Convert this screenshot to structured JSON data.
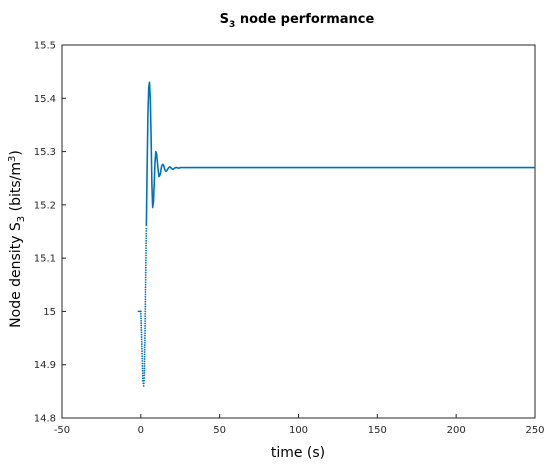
{
  "chart_data": {
    "type": "line",
    "title": {
      "main": "S",
      "sub": "3",
      "rest": " node performance"
    },
    "xlabel": "time (s)",
    "ylabel": {
      "pre": "Node density S",
      "sub": "3",
      "mid": " (bits/m",
      "sup": "3",
      "post": ")"
    },
    "xlim": [
      -50,
      250
    ],
    "ylim": [
      14.8,
      15.5
    ],
    "xticks": [
      -50,
      0,
      50,
      100,
      150,
      200,
      250
    ],
    "xtick_labels": [
      "-50",
      "0",
      "50",
      "100",
      "150",
      "200",
      "250"
    ],
    "yticks": [
      14.8,
      14.9,
      15.0,
      15.1,
      15.2,
      15.3,
      15.4,
      15.5
    ],
    "ytick_labels": [
      "14.8",
      "14.9",
      "15",
      "15.1",
      "15.2",
      "15.3",
      "15.4",
      "15.5"
    ],
    "grid": true,
    "series": [
      {
        "color": "#0072BD",
        "x": [
          -2,
          0,
          0.7,
          1.3,
          1.8,
          2.2,
          2.6,
          3.0,
          3.5,
          4.0,
          4.5,
          5.0,
          5.5,
          6.0,
          6.5,
          7.0,
          7.5,
          8.0,
          8.5,
          9.0,
          9.5,
          10.0,
          10.5,
          11.0,
          11.5,
          12.0,
          12.5,
          13.0,
          13.5,
          14.0,
          14.5,
          15.0,
          15.5,
          16.0,
          16.5,
          17.0,
          17.5,
          18.0,
          18.5,
          19.0,
          19.5,
          20.0,
          20.5,
          21.0,
          21.5,
          22.0,
          22.5,
          23.0,
          23.5,
          24.0,
          24.5,
          25.0,
          26.0,
          27.0,
          28.0,
          29.0,
          30.0,
          31.0,
          32.0,
          35.0,
          40.0,
          50.0,
          100.0,
          150.0,
          200.0,
          250.0
        ],
        "y": [
          15.0,
          15.0,
          14.93,
          14.87,
          14.86,
          14.88,
          14.95,
          15.05,
          15.16,
          15.27,
          15.37,
          15.42,
          15.43,
          15.4,
          15.33,
          15.24,
          15.195,
          15.205,
          15.24,
          15.28,
          15.3,
          15.295,
          15.28,
          15.265,
          15.253,
          15.255,
          15.26,
          15.27,
          15.275,
          15.276,
          15.274,
          15.268,
          15.264,
          15.263,
          15.264,
          15.267,
          15.269,
          15.271,
          15.271,
          15.27,
          15.268,
          15.267,
          15.267,
          15.268,
          15.269,
          15.27,
          15.27,
          15.27,
          15.269,
          15.269,
          15.269,
          15.27,
          15.27,
          15.27,
          15.27,
          15.27,
          15.27,
          15.27,
          15.27,
          15.27,
          15.27,
          15.27,
          15.27,
          15.27,
          15.27,
          15.27
        ]
      }
    ]
  }
}
